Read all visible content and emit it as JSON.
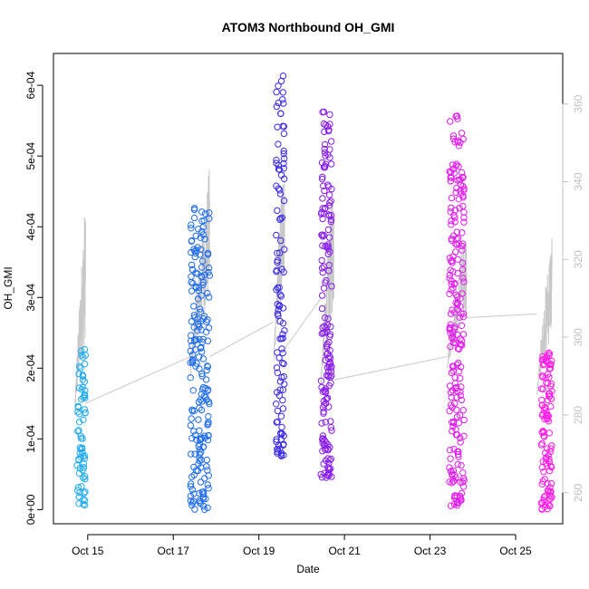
{
  "chart_data": {
    "type": "scatter",
    "title": "ATOM3 Northbound OH_GMI",
    "xlabel": "Date",
    "ylabel": "OH_GMI",
    "x_date_ticks": [
      "Oct 15",
      "Oct 17",
      "Oct 19",
      "Oct 21",
      "Oct 23",
      "Oct 25"
    ],
    "x_tick_values_days": [
      15,
      17,
      19,
      21,
      23,
      25
    ],
    "xlim_days": [
      14.2,
      26.1
    ],
    "ylim": [
      -2e-05,
      0.000645
    ],
    "y_ticks": [
      0,
      0.0001,
      0.0002,
      0.0003,
      0.0004,
      0.0005,
      0.0006
    ],
    "y_tick_labels": [
      "0e+00",
      "1e-04",
      "2e-04",
      "3e-04",
      "4e-04",
      "5e-04",
      "6e-04"
    ],
    "y2_ticks": [
      260,
      280,
      300,
      320,
      340,
      360
    ],
    "y2lim": [
      252,
      373
    ],
    "grid": false,
    "legend": "none",
    "colors": {
      "flight1": "#1eaaf0",
      "flight2": "#1f6cf0",
      "flight3": "#3a2af0",
      "flight4": "#8a1ef0",
      "flight5": "#e31ef0",
      "flight6": "#ff1ee8",
      "secondary_line": "#c8c8c8",
      "secondary_axis": "#c0c0c0"
    },
    "flights": [
      {
        "x_range": [
          14.75,
          14.95
        ],
        "y_range": [
          5e-06,
          0.000227
        ],
        "color": "flight1",
        "n": 70
      },
      {
        "x_range": [
          17.4,
          17.85
        ],
        "y_range": [
          0.0,
          0.00044
        ],
        "color": "flight2",
        "n": 200
      },
      {
        "x_range": [
          19.4,
          19.6
        ],
        "y_range": [
          7.5e-05,
          0.000625
        ],
        "color": "flight3",
        "n": 110
      },
      {
        "x_range": [
          20.45,
          20.7
        ],
        "y_range": [
          4.5e-05,
          0.000565
        ],
        "color": "flight4",
        "n": 170
      },
      {
        "x_range": [
          23.45,
          23.8
        ],
        "y_range": [
          5e-06,
          0.000558
        ],
        "color": "flight5",
        "n": 220
      },
      {
        "x_range": [
          25.6,
          25.85
        ],
        "y_range": [
          0.0,
          0.000222
        ],
        "color": "flight6",
        "n": 110
      }
    ],
    "secondary_series": {
      "axis": "right",
      "segments": [
        {
          "x_range": [
            14.7,
            14.95
          ],
          "y_range": [
            280,
            337
          ]
        },
        {
          "x_range": [
            17.4,
            17.85
          ],
          "y_range": [
            290,
            345
          ]
        },
        {
          "x_range": [
            19.35,
            19.6
          ],
          "y_range": [
            294,
            352
          ]
        },
        {
          "x_range": [
            20.45,
            20.75
          ],
          "y_range": [
            288,
            343
          ]
        },
        {
          "x_range": [
            23.4,
            23.85
          ],
          "y_range": [
            292,
            330
          ]
        },
        {
          "x_range": [
            25.5,
            25.85
          ],
          "y_range": [
            285,
            329
          ]
        }
      ],
      "connections": [
        {
          "x": [
            14.95,
            17.4
          ],
          "y": [
            283,
            295
          ]
        },
        {
          "x": [
            17.85,
            19.35
          ],
          "y": [
            295,
            304
          ]
        },
        {
          "x": [
            19.6,
            20.45
          ],
          "y": [
            297,
            310
          ]
        },
        {
          "x": [
            20.75,
            23.4
          ],
          "y": [
            289,
            295
          ]
        },
        {
          "x": [
            23.85,
            25.5
          ],
          "y": [
            305,
            306
          ]
        }
      ]
    }
  }
}
